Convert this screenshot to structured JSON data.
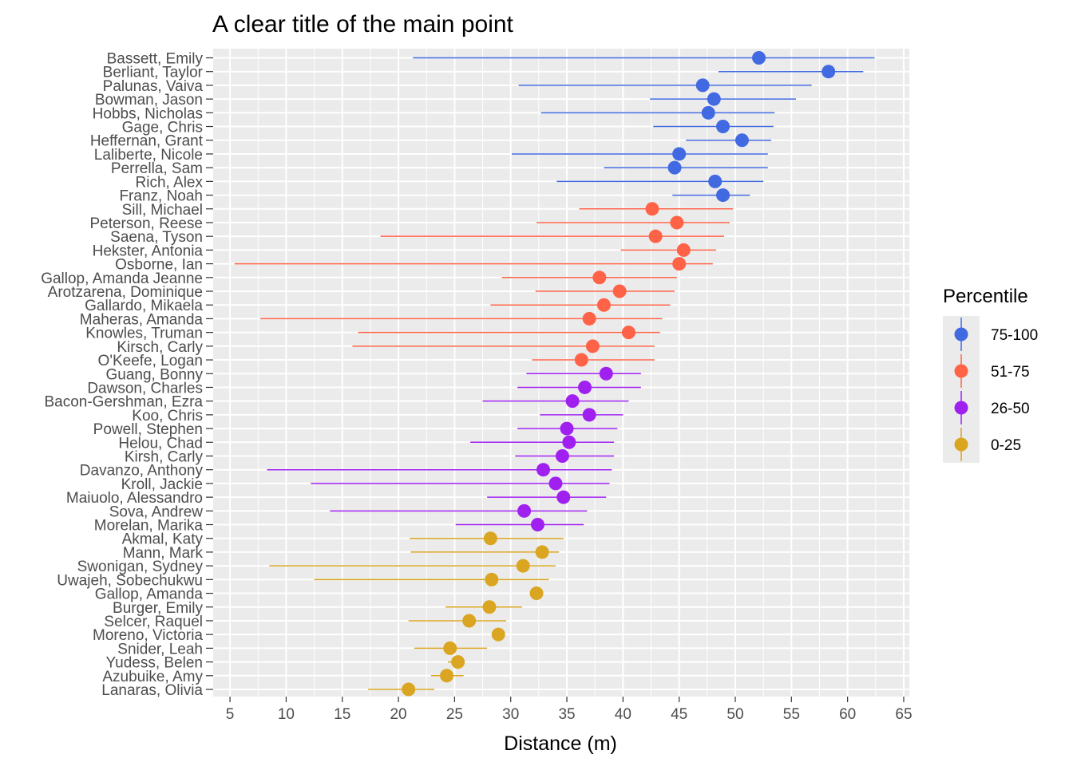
{
  "chart_data": {
    "type": "scatter",
    "title": "A clear title of the main point",
    "xlabel": "Distance (m)",
    "ylabel": "",
    "xlim": [
      3.5,
      65.5
    ],
    "xticks": [
      5,
      10,
      15,
      20,
      25,
      30,
      35,
      40,
      45,
      50,
      55,
      60,
      65
    ],
    "grid": true,
    "legend": {
      "title": "Percentile",
      "placement": "right",
      "entries": [
        {
          "label": "75-100",
          "color": "#4169E1"
        },
        {
          "label": "51-75",
          "color": "#FF6347"
        },
        {
          "label": "26-50",
          "color": "#A020F0"
        },
        {
          "label": "0-25",
          "color": "#DAA520"
        }
      ]
    },
    "series": [
      {
        "name": "75-100",
        "color": "#4169E1",
        "points": [
          {
            "label": "Bassett, Emily",
            "x": 52.1,
            "low": 21.3,
            "high": 62.4
          },
          {
            "label": "Berliant, Taylor",
            "x": 58.3,
            "low": 48.5,
            "high": 61.4
          },
          {
            "label": "Palunas, Vaiva",
            "x": 47.1,
            "low": 30.7,
            "high": 56.8
          },
          {
            "label": "Bowman, Jason",
            "x": 48.1,
            "low": 42.4,
            "high": 55.4
          },
          {
            "label": "Hobbs, Nicholas",
            "x": 47.6,
            "low": 32.7,
            "high": 53.5
          },
          {
            "label": "Gage, Chris",
            "x": 48.9,
            "low": 42.7,
            "high": 53.4
          },
          {
            "label": "Heffernan, Grant",
            "x": 50.6,
            "low": 45.6,
            "high": 53.2
          },
          {
            "label": "Laliberte, Nicole",
            "x": 45.0,
            "low": 30.1,
            "high": 52.9
          },
          {
            "label": "Perrella, Sam",
            "x": 44.6,
            "low": 38.3,
            "high": 52.9
          },
          {
            "label": "Rich, Alex",
            "x": 48.2,
            "low": 34.1,
            "high": 52.5
          },
          {
            "label": "Franz, Noah",
            "x": 48.9,
            "low": 44.4,
            "high": 51.3
          }
        ]
      },
      {
        "name": "51-75",
        "color": "#FF6347",
        "points": [
          {
            "label": "Sill, Michael",
            "x": 42.6,
            "low": 36.1,
            "high": 49.8
          },
          {
            "label": "Peterson, Reese",
            "x": 44.8,
            "low": 32.3,
            "high": 49.5
          },
          {
            "label": "Saena, Tyson",
            "x": 42.9,
            "low": 18.4,
            "high": 49.0
          },
          {
            "label": "Hekster, Antonia",
            "x": 45.4,
            "low": 39.8,
            "high": 48.3
          },
          {
            "label": "Osborne, Ian",
            "x": 45.0,
            "low": 5.4,
            "high": 48.0
          },
          {
            "label": "Gallop, Amanda Jeanne",
            "x": 37.9,
            "low": 29.2,
            "high": 44.8
          },
          {
            "label": "Arotzarena, Dominique",
            "x": 39.7,
            "low": 32.2,
            "high": 44.6
          },
          {
            "label": "Gallardo, Mikaela",
            "x": 38.3,
            "low": 28.2,
            "high": 44.2
          },
          {
            "label": "Maheras, Amanda",
            "x": 37.0,
            "low": 7.7,
            "high": 43.5
          },
          {
            "label": "Knowles, Truman",
            "x": 40.5,
            "low": 16.4,
            "high": 43.3
          },
          {
            "label": "Kirsch, Carly",
            "x": 37.3,
            "low": 15.9,
            "high": 42.8
          },
          {
            "label": "O'Keefe, Logan",
            "x": 36.3,
            "low": 31.9,
            "high": 42.8
          }
        ]
      },
      {
        "name": "26-50",
        "color": "#A020F0",
        "points": [
          {
            "label": "Guang, Bonny",
            "x": 38.5,
            "low": 31.4,
            "high": 41.6
          },
          {
            "label": "Dawson, Charles",
            "x": 36.6,
            "low": 30.6,
            "high": 41.6
          },
          {
            "label": "Bacon-Gershman, Ezra",
            "x": 35.5,
            "low": 27.5,
            "high": 40.5
          },
          {
            "label": "Koo, Chris",
            "x": 37.0,
            "low": 32.6,
            "high": 40.0
          },
          {
            "label": "Powell, Stephen",
            "x": 35.0,
            "low": 30.6,
            "high": 39.5
          },
          {
            "label": "Helou, Chad",
            "x": 35.2,
            "low": 26.4,
            "high": 39.2
          },
          {
            "label": "Kirsh, Carly",
            "x": 34.6,
            "low": 30.4,
            "high": 39.2
          },
          {
            "label": "Davanzo, Anthony",
            "x": 32.9,
            "low": 8.3,
            "high": 39.0
          },
          {
            "label": "Kroll, Jackie",
            "x": 34.0,
            "low": 12.2,
            "high": 38.8
          },
          {
            "label": "Maiuolo, Alessandro",
            "x": 34.7,
            "low": 27.9,
            "high": 38.5
          },
          {
            "label": "Sova, Andrew",
            "x": 31.2,
            "low": 13.9,
            "high": 36.8
          },
          {
            "label": "Morelan, Marika",
            "x": 32.4,
            "low": 25.1,
            "high": 36.5
          }
        ]
      },
      {
        "name": "0-25",
        "color": "#DAA520",
        "points": [
          {
            "label": "Akmal, Katy",
            "x": 28.2,
            "low": 21.0,
            "high": 34.7
          },
          {
            "label": "Mann, Mark",
            "x": 32.8,
            "low": 21.1,
            "high": 34.3
          },
          {
            "label": "Swonigan, Sydney",
            "x": 31.1,
            "low": 8.5,
            "high": 34.0
          },
          {
            "label": "Uwajeh, Sobechukwu",
            "x": 28.3,
            "low": 12.5,
            "high": 33.4
          },
          {
            "label": "Gallop, Amanda",
            "x": 32.3,
            "low": 32.3,
            "high": 32.3
          },
          {
            "label": "Burger, Emily",
            "x": 28.1,
            "low": 24.2,
            "high": 31.0
          },
          {
            "label": "Selcer, Raquel",
            "x": 26.3,
            "low": 20.9,
            "high": 29.6
          },
          {
            "label": "Moreno, Victoria",
            "x": 28.9,
            "low": 28.9,
            "high": 28.9
          },
          {
            "label": "Snider, Leah",
            "x": 24.6,
            "low": 21.4,
            "high": 27.9
          },
          {
            "label": "Yudess, Belen",
            "x": 25.3,
            "low": 24.4,
            "high": 25.8
          },
          {
            "label": "Azubuike, Amy",
            "x": 24.3,
            "low": 22.9,
            "high": 25.8
          },
          {
            "label": "Lanaras, Olivia",
            "x": 20.9,
            "low": 17.3,
            "high": 23.2
          }
        ]
      }
    ]
  }
}
